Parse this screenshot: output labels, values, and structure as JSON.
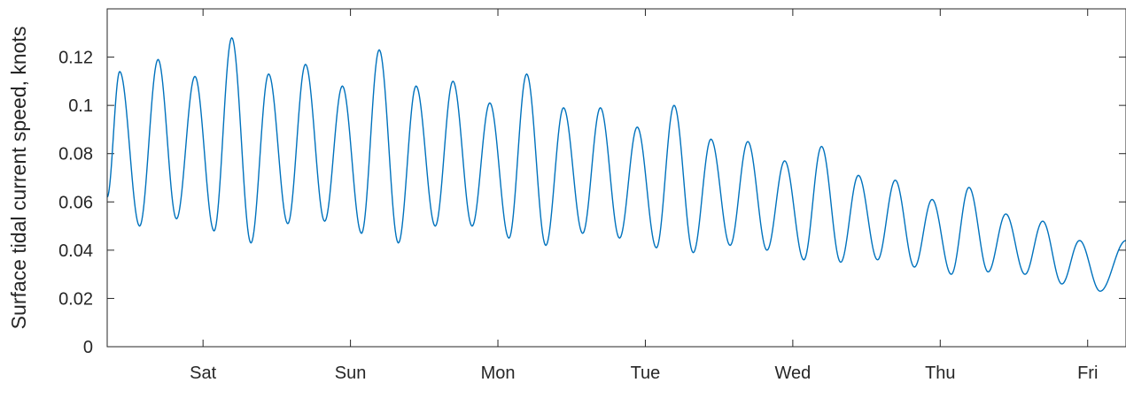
{
  "chart_data": {
    "type": "line",
    "title": "",
    "xlabel": "",
    "ylabel": "Surface tidal current speed, knots",
    "x_unit": "days",
    "xlim": [
      0,
      6.91
    ],
    "ylim": [
      0,
      0.14
    ],
    "x_ticks": [
      {
        "value": 0.65,
        "label": "Sat"
      },
      {
        "value": 1.65,
        "label": "Sun"
      },
      {
        "value": 2.65,
        "label": "Mon"
      },
      {
        "value": 3.65,
        "label": "Tue"
      },
      {
        "value": 4.65,
        "label": "Wed"
      },
      {
        "value": 5.65,
        "label": "Thu"
      },
      {
        "value": 6.65,
        "label": "Fri"
      }
    ],
    "y_ticks": [
      {
        "value": 0,
        "label": "0"
      },
      {
        "value": 0.02,
        "label": "0.02"
      },
      {
        "value": 0.04,
        "label": "0.04"
      },
      {
        "value": 0.06,
        "label": "0.06"
      },
      {
        "value": 0.08,
        "label": "0.08"
      },
      {
        "value": 0.1,
        "label": "0.1"
      },
      {
        "value": 0.12,
        "label": "0.12"
      }
    ],
    "grid": false,
    "series": [
      {
        "name": "",
        "color": "#0072bd",
        "points": [
          [
            0.0,
            0.062
          ],
          [
            0.085,
            0.114
          ],
          [
            0.22,
            0.05
          ],
          [
            0.345,
            0.119
          ],
          [
            0.47,
            0.053
          ],
          [
            0.595,
            0.112
          ],
          [
            0.725,
            0.048
          ],
          [
            0.845,
            0.128
          ],
          [
            0.975,
            0.043
          ],
          [
            1.095,
            0.113
          ],
          [
            1.225,
            0.051
          ],
          [
            1.345,
            0.117
          ],
          [
            1.475,
            0.052
          ],
          [
            1.595,
            0.108
          ],
          [
            1.725,
            0.047
          ],
          [
            1.845,
            0.123
          ],
          [
            1.975,
            0.043
          ],
          [
            2.095,
            0.108
          ],
          [
            2.225,
            0.05
          ],
          [
            2.345,
            0.11
          ],
          [
            2.475,
            0.05
          ],
          [
            2.595,
            0.101
          ],
          [
            2.725,
            0.045
          ],
          [
            2.845,
            0.113
          ],
          [
            2.975,
            0.042
          ],
          [
            3.095,
            0.099
          ],
          [
            3.225,
            0.047
          ],
          [
            3.345,
            0.099
          ],
          [
            3.475,
            0.045
          ],
          [
            3.595,
            0.091
          ],
          [
            3.725,
            0.041
          ],
          [
            3.845,
            0.1
          ],
          [
            3.975,
            0.039
          ],
          [
            4.095,
            0.086
          ],
          [
            4.225,
            0.042
          ],
          [
            4.345,
            0.085
          ],
          [
            4.475,
            0.04
          ],
          [
            4.595,
            0.077
          ],
          [
            4.725,
            0.036
          ],
          [
            4.845,
            0.083
          ],
          [
            4.975,
            0.035
          ],
          [
            5.095,
            0.071
          ],
          [
            5.225,
            0.036
          ],
          [
            5.345,
            0.069
          ],
          [
            5.475,
            0.033
          ],
          [
            5.595,
            0.061
          ],
          [
            5.725,
            0.03
          ],
          [
            5.845,
            0.066
          ],
          [
            5.975,
            0.031
          ],
          [
            6.095,
            0.055
          ],
          [
            6.225,
            0.03
          ],
          [
            6.345,
            0.052
          ],
          [
            6.475,
            0.026
          ],
          [
            6.595,
            0.044
          ],
          [
            6.735,
            0.023
          ],
          [
            6.91,
            0.044
          ]
        ]
      }
    ]
  }
}
